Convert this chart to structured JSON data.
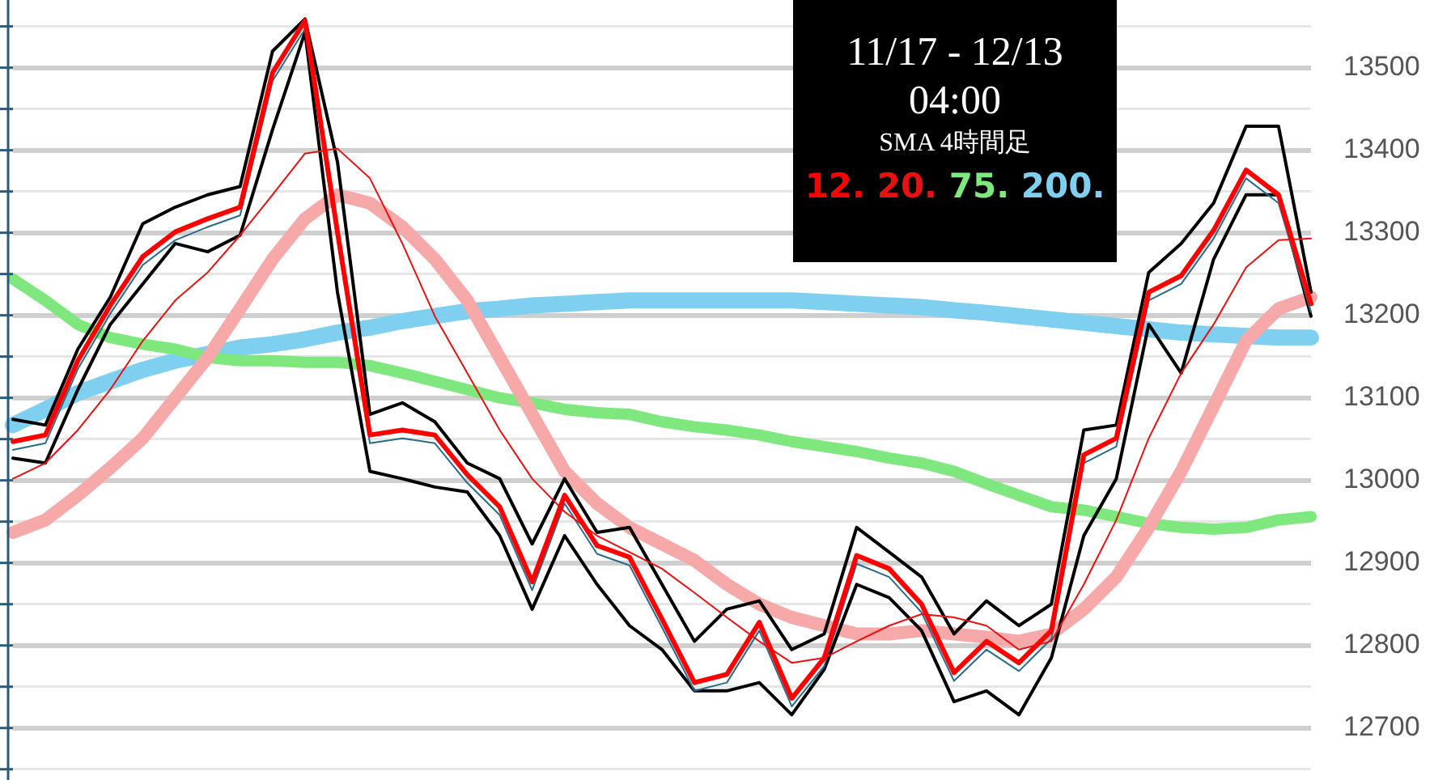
{
  "chart_data": {
    "type": "line",
    "title": "11/17 - 12/13",
    "subtitle": "04:00",
    "legend_title": "SMA 4時間足",
    "categories": [
      null,
      null,
      null,
      null,
      null,
      null,
      null,
      null,
      null,
      null,
      null,
      null,
      null,
      null,
      null,
      null,
      null,
      null,
      null,
      null,
      null,
      null,
      null,
      null,
      null,
      null,
      null,
      null,
      null,
      null,
      null,
      null,
      null,
      null,
      null,
      null,
      null,
      null,
      null,
      null,
      null
    ],
    "ylim": [
      12637,
      13582
    ],
    "yticks": [
      {
        "value": 12650,
        "label": null
      },
      12700,
      {
        "value": 12750,
        "label": null
      },
      12800,
      {
        "value": 12850,
        "label": null
      },
      12900,
      {
        "value": 12950,
        "label": null
      },
      13000,
      {
        "value": 13050,
        "label": null
      },
      13100,
      {
        "value": 13150,
        "label": null
      },
      13200,
      {
        "value": 13250,
        "label": null
      },
      13300,
      {
        "value": 13350,
        "label": null
      },
      13400,
      {
        "value": 13450,
        "label": null
      },
      13500,
      {
        "value": 13550,
        "label": null
      }
    ],
    "grid": "y",
    "legend": "top",
    "tick_labels": "y",
    "marker": "none",
    "line_style": "solid",
    "series": [
      {
        "color": "#7fd0f0",
        "values": [
          13067,
          13086,
          13106,
          13120,
          13134,
          13145,
          13153,
          13161,
          13165,
          13171,
          13179,
          13185,
          13193,
          13199,
          13205,
          13208,
          13212,
          13214,
          13216,
          13218,
          13218,
          13218,
          13218,
          13218,
          13218,
          13216,
          13214,
          13212,
          13210,
          13206,
          13203,
          13199,
          13195,
          13191,
          13187,
          13183,
          13179,
          13177,
          13175,
          13173,
          13173
        ],
        "name": "200."
      },
      {
        "color": "#7ee87e",
        "values": [
          13244,
          13218,
          13189,
          13173,
          13165,
          13159,
          13149,
          13145,
          13145,
          13143,
          13143,
          13139,
          13130,
          13120,
          13110,
          13100,
          13094,
          13086,
          13082,
          13080,
          13071,
          13065,
          13061,
          13055,
          13047,
          13041,
          13035,
          13027,
          13021,
          13011,
          12996,
          12982,
          12968,
          12964,
          12956,
          12948,
          12943,
          12941,
          12943,
          12952,
          12956
        ],
        "name": "75."
      },
      {
        "color": "#f7a8a8",
        "values": [
          12937,
          12952,
          12982,
          13015,
          13051,
          13100,
          13149,
          13208,
          13268,
          13317,
          13346,
          13336,
          13307,
          13268,
          13218,
          13149,
          13080,
          13011,
          12972,
          12943,
          12923,
          12903,
          12874,
          12850,
          12834,
          12824,
          12814,
          12814,
          12818,
          12814,
          12810,
          12805,
          12814,
          12844,
          12883,
          12943,
          13011,
          13090,
          13169,
          13208,
          13222
        ]
      },
      {
        "color": "#000000",
        "values": [
          13074,
          13067,
          13159,
          13222,
          13311,
          13331,
          13346,
          13356,
          13520,
          13559,
          13386,
          13080,
          13094,
          13071,
          13021,
          13002,
          12923,
          13002,
          12937,
          12943,
          12874,
          12805,
          12844,
          12854,
          12795,
          12814,
          12943,
          12913,
          12883,
          12814,
          12854,
          12824,
          12850,
          13061,
          13067,
          13252,
          13287,
          13336,
          13429,
          13429,
          13228
        ]
      },
      {
        "color": "#000000",
        "values": [
          13027,
          13021,
          13110,
          13189,
          13238,
          13287,
          13277,
          13297,
          13425,
          13543,
          13228,
          13011,
          13002,
          12992,
          12986,
          12933,
          12844,
          12933,
          12874,
          12824,
          12795,
          12745,
          12745,
          12755,
          12716,
          12771,
          12874,
          12858,
          12818,
          12732,
          12745,
          12716,
          12785,
          12933,
          13002,
          13189,
          13130,
          13268,
          13346,
          13346,
          13199
        ]
      },
      {
        "color": "#2a6a8a",
        "values": [
          13037,
          13045,
          13135,
          13202,
          13261,
          13291,
          13307,
          13321,
          13484,
          13547,
          13291,
          13045,
          13051,
          13045,
          12997,
          12958,
          12867,
          12972,
          12911,
          12897,
          12822,
          12745,
          12755,
          12818,
          12726,
          12775,
          12899,
          12883,
          12840,
          12757,
          12795,
          12769,
          12808,
          13021,
          13041,
          13218,
          13238,
          13293,
          13366,
          13336,
          13204
        ]
      },
      {
        "color": "#e81010",
        "values": [
          13002,
          13021,
          13061,
          13110,
          13169,
          13218,
          13252,
          13297,
          13346,
          13396,
          13402,
          13366,
          13287,
          13199,
          13130,
          13061,
          13002,
          12962,
          12933,
          12913,
          12893,
          12864,
          12834,
          12805,
          12779,
          12785,
          12805,
          12824,
          12838,
          12834,
          12824,
          12795,
          12805,
          12874,
          12952,
          13051,
          13130,
          13189,
          13258,
          13291,
          13293
        ],
        "name": "20."
      },
      {
        "color": "#ff0000",
        "values": [
          13047,
          13055,
          13145,
          13212,
          13271,
          13301,
          13317,
          13331,
          13494,
          13557,
          13301,
          13055,
          13061,
          13055,
          13007,
          12968,
          12877,
          12982,
          12921,
          12907,
          12832,
          12755,
          12765,
          12828,
          12736,
          12785,
          12909,
          12893,
          12850,
          12767,
          12805,
          12779,
          12818,
          13031,
          13051,
          13228,
          13248,
          13303,
          13376,
          13346,
          13214
        ],
        "name": "12."
      }
    ]
  }
}
